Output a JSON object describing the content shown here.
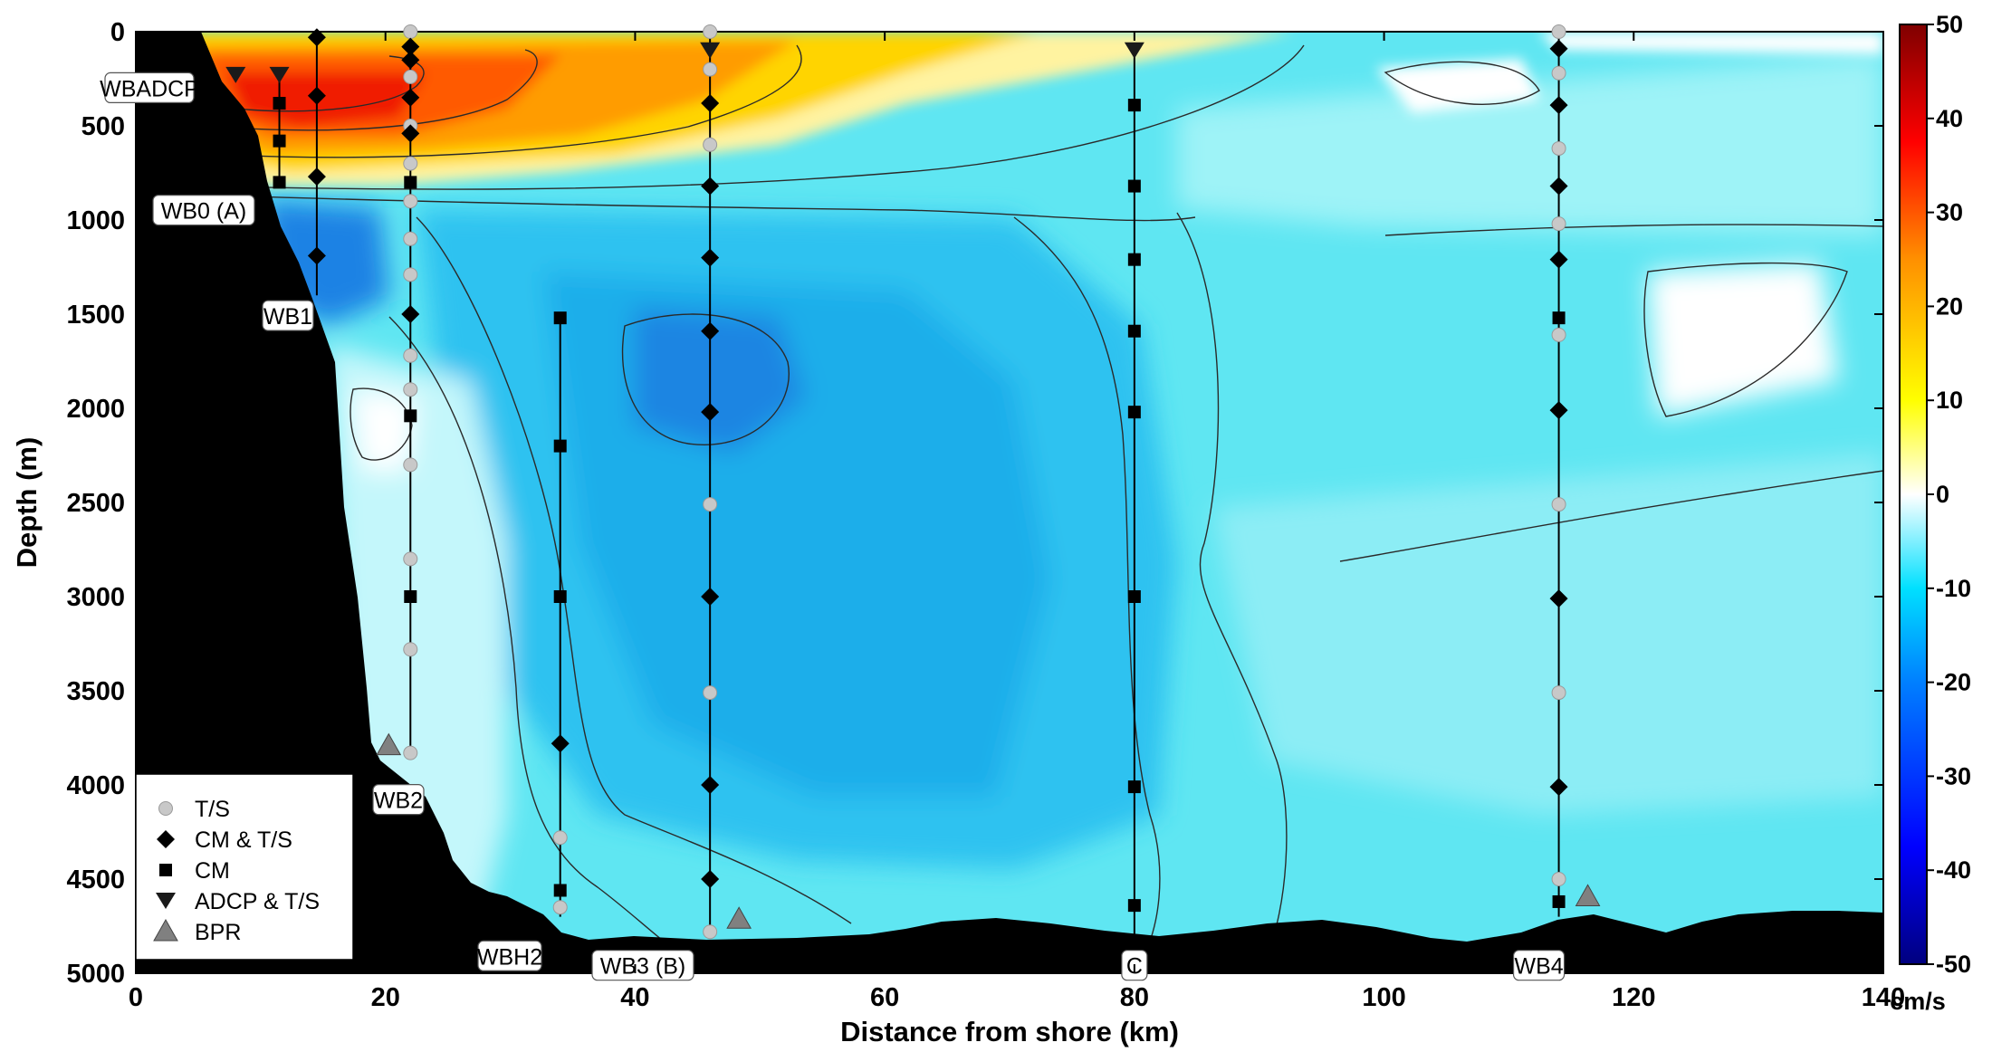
{
  "chart_data": {
    "type": "heatmap",
    "title": "",
    "xlabel": "Distance from shore (km)",
    "ylabel": "Depth (m)",
    "xlim": [
      0,
      140
    ],
    "ylim": [
      5000,
      0
    ],
    "x_ticks": [
      "0",
      "20",
      "40",
      "60",
      "80",
      "100",
      "120",
      "140"
    ],
    "y_ticks": [
      "0",
      "500",
      "1000",
      "1500",
      "2000",
      "2500",
      "3000",
      "3500",
      "4000",
      "4500",
      "5000"
    ],
    "colorbar": {
      "unit": "cm/s",
      "range": [
        -50,
        50
      ],
      "ticks": [
        "50",
        "40",
        "30",
        "20",
        "10",
        "0",
        "-10",
        "-20",
        "-30",
        "-40",
        "-50"
      ],
      "colors": [
        "#00007f",
        "#0000ff",
        "#007fff",
        "#00ffff",
        "#ffffff",
        "#ffff00",
        "#ff7f00",
        "#ff0000",
        "#7f0000"
      ]
    },
    "colors": {
      "bathymetry": "#000000",
      "mooring_line": "#000000",
      "ts_marker": "#c8c8c8",
      "bpr_marker": "#808080"
    },
    "velocity_features": [
      {
        "feature": "surface northward core",
        "x_range": [
          6,
          55
        ],
        "depth_range": [
          0,
          900
        ],
        "max_velocity": 40
      },
      {
        "feature": "deep southward core",
        "x_range": [
          40,
          50
        ],
        "depth_range": [
          1500,
          2100
        ],
        "velocity": -20
      },
      {
        "feature": "southward cell near WB1",
        "x_range": [
          12,
          20
        ],
        "depth_range": [
          1000,
          1400
        ],
        "velocity": -20
      }
    ],
    "moorings": [
      {
        "name": "WBADCP",
        "x": 8,
        "bottom_depth": 250
      },
      {
        "name": "WB0 (A)",
        "x": 11.5,
        "bottom_depth": 820
      },
      {
        "name": "WB1",
        "x": 14.5,
        "bottom_depth": 1400
      },
      {
        "name": "WB2",
        "x": 22,
        "bottom_depth": 3850
      },
      {
        "name": "WBH2",
        "x": 34,
        "bottom_depth": 4700
      },
      {
        "name": "WB3 (B)",
        "x": 46,
        "bottom_depth": 4800
      },
      {
        "name": "C",
        "x": 80,
        "bottom_depth": 4830
      },
      {
        "name": "WB4",
        "x": 114,
        "bottom_depth": 4700
      }
    ],
    "instruments": [
      {
        "mooring": "WBADCP",
        "type": "ADCP & T/S",
        "depth": 230
      },
      {
        "mooring": "WB0 (A)",
        "type": "ADCP & T/S",
        "depth": 230
      },
      {
        "mooring": "WB0 (A)",
        "type": "CM",
        "depth": 380
      },
      {
        "mooring": "WB0 (A)",
        "type": "CM",
        "depth": 580
      },
      {
        "mooring": "WB0 (A)",
        "type": "CM",
        "depth": 800
      },
      {
        "mooring": "WB1",
        "type": "CM & T/S",
        "depth": 30
      },
      {
        "mooring": "WB1",
        "type": "CM & T/S",
        "depth": 340
      },
      {
        "mooring": "WB1",
        "type": "CM & T/S",
        "depth": 770
      },
      {
        "mooring": "WB1",
        "type": "CM & T/S",
        "depth": 1190
      },
      {
        "mooring": "WB2",
        "type": "T/S",
        "depth": 0
      },
      {
        "mooring": "WB2",
        "type": "CM & T/S",
        "depth": 80
      },
      {
        "mooring": "WB2",
        "type": "CM & T/S",
        "depth": 150
      },
      {
        "mooring": "WB2",
        "type": "T/S",
        "depth": 240
      },
      {
        "mooring": "WB2",
        "type": "CM & T/S",
        "depth": 350
      },
      {
        "mooring": "WB2",
        "type": "T/S",
        "depth": 500
      },
      {
        "mooring": "WB2",
        "type": "CM & T/S",
        "depth": 540
      },
      {
        "mooring": "WB2",
        "type": "T/S",
        "depth": 700
      },
      {
        "mooring": "WB2",
        "type": "CM",
        "depth": 800
      },
      {
        "mooring": "WB2",
        "type": "T/S",
        "depth": 900
      },
      {
        "mooring": "WB2",
        "type": "T/S",
        "depth": 1100
      },
      {
        "mooring": "WB2",
        "type": "T/S",
        "depth": 1290
      },
      {
        "mooring": "WB2",
        "type": "CM & T/S",
        "depth": 1500
      },
      {
        "mooring": "WB2",
        "type": "T/S",
        "depth": 1720
      },
      {
        "mooring": "WB2",
        "type": "T/S",
        "depth": 1900
      },
      {
        "mooring": "WB2",
        "type": "CM",
        "depth": 2040
      },
      {
        "mooring": "WB2",
        "type": "T/S",
        "depth": 2300
      },
      {
        "mooring": "WB2",
        "type": "T/S",
        "depth": 2800
      },
      {
        "mooring": "WB2",
        "type": "CM",
        "depth": 3000
      },
      {
        "mooring": "WB2",
        "type": "T/S",
        "depth": 3280
      },
      {
        "mooring": "WB2",
        "type": "T/S",
        "depth": 3830
      },
      {
        "mooring": "WB2",
        "type": "BPR",
        "depth": 3830
      },
      {
        "mooring": "WBH2",
        "type": "CM",
        "depth": 1520
      },
      {
        "mooring": "WBH2",
        "type": "CM",
        "depth": 2200
      },
      {
        "mooring": "WBH2",
        "type": "CM",
        "depth": 3000
      },
      {
        "mooring": "WBH2",
        "type": "CM & T/S",
        "depth": 3780
      },
      {
        "mooring": "WBH2",
        "type": "T/S",
        "depth": 4280
      },
      {
        "mooring": "WBH2",
        "type": "CM",
        "depth": 4560
      },
      {
        "mooring": "WBH2",
        "type": "T/S",
        "depth": 4650
      },
      {
        "mooring": "WB3 (B)",
        "type": "T/S",
        "depth": 0
      },
      {
        "mooring": "WB3 (B)",
        "type": "ADCP & T/S",
        "depth": 100
      },
      {
        "mooring": "WB3 (B)",
        "type": "T/S",
        "depth": 200
      },
      {
        "mooring": "WB3 (B)",
        "type": "CM & T/S",
        "depth": 380
      },
      {
        "mooring": "WB3 (B)",
        "type": "T/S",
        "depth": 600
      },
      {
        "mooring": "WB3 (B)",
        "type": "CM & T/S",
        "depth": 820
      },
      {
        "mooring": "WB3 (B)",
        "type": "CM & T/S",
        "depth": 1200
      },
      {
        "mooring": "WB3 (B)",
        "type": "CM & T/S",
        "depth": 1590
      },
      {
        "mooring": "WB3 (B)",
        "type": "CM & T/S",
        "depth": 2020
      },
      {
        "mooring": "WB3 (B)",
        "type": "T/S",
        "depth": 2510
      },
      {
        "mooring": "WB3 (B)",
        "type": "CM & T/S",
        "depth": 3000
      },
      {
        "mooring": "WB3 (B)",
        "type": "T/S",
        "depth": 3510
      },
      {
        "mooring": "WB3 (B)",
        "type": "CM & T/S",
        "depth": 4000
      },
      {
        "mooring": "WB3 (B)",
        "type": "CM & T/S",
        "depth": 4500
      },
      {
        "mooring": "WB3 (B)",
        "type": "T/S",
        "depth": 4780
      },
      {
        "mooring": "WB3 (B)",
        "type": "BPR",
        "depth": 4780
      },
      {
        "mooring": "C",
        "type": "ADCP & T/S",
        "depth": 100
      },
      {
        "mooring": "C",
        "type": "CM",
        "depth": 390
      },
      {
        "mooring": "C",
        "type": "CM",
        "depth": 820
      },
      {
        "mooring": "C",
        "type": "CM",
        "depth": 1210
      },
      {
        "mooring": "C",
        "type": "CM",
        "depth": 1590
      },
      {
        "mooring": "C",
        "type": "CM",
        "depth": 2020
      },
      {
        "mooring": "C",
        "type": "CM",
        "depth": 3000
      },
      {
        "mooring": "C",
        "type": "CM",
        "depth": 4010
      },
      {
        "mooring": "C",
        "type": "CM",
        "depth": 4640
      },
      {
        "mooring": "WB4",
        "type": "T/S",
        "depth": 0
      },
      {
        "mooring": "WB4",
        "type": "CM & T/S",
        "depth": 90
      },
      {
        "mooring": "WB4",
        "type": "T/S",
        "depth": 220
      },
      {
        "mooring": "WB4",
        "type": "CM & T/S",
        "depth": 390
      },
      {
        "mooring": "WB4",
        "type": "T/S",
        "depth": 620
      },
      {
        "mooring": "WB4",
        "type": "CM & T/S",
        "depth": 820
      },
      {
        "mooring": "WB4",
        "type": "T/S",
        "depth": 1020
      },
      {
        "mooring": "WB4",
        "type": "CM & T/S",
        "depth": 1210
      },
      {
        "mooring": "WB4",
        "type": "CM",
        "depth": 1520
      },
      {
        "mooring": "WB4",
        "type": "T/S",
        "depth": 1610
      },
      {
        "mooring": "WB4",
        "type": "CM & T/S",
        "depth": 2010
      },
      {
        "mooring": "WB4",
        "type": "T/S",
        "depth": 2510
      },
      {
        "mooring": "WB4",
        "type": "CM & T/S",
        "depth": 3010
      },
      {
        "mooring": "WB4",
        "type": "T/S",
        "depth": 3510
      },
      {
        "mooring": "WB4",
        "type": "CM & T/S",
        "depth": 4010
      },
      {
        "mooring": "WB4",
        "type": "T/S",
        "depth": 4500
      },
      {
        "mooring": "WB4",
        "type": "CM",
        "depth": 4620
      },
      {
        "mooring": "WB4",
        "type": "BPR",
        "depth": 4680
      }
    ],
    "legend": {
      "placement": "bottom-left",
      "entries": [
        {
          "label": "T/S",
          "marker": "circle"
        },
        {
          "label": "CM & T/S",
          "marker": "diamond"
        },
        {
          "label": "CM",
          "marker": "square"
        },
        {
          "label": "ADCP & T/S",
          "marker": "triangle-down"
        },
        {
          "label": "BPR",
          "marker": "triangle-up"
        }
      ]
    },
    "grid": false
  }
}
